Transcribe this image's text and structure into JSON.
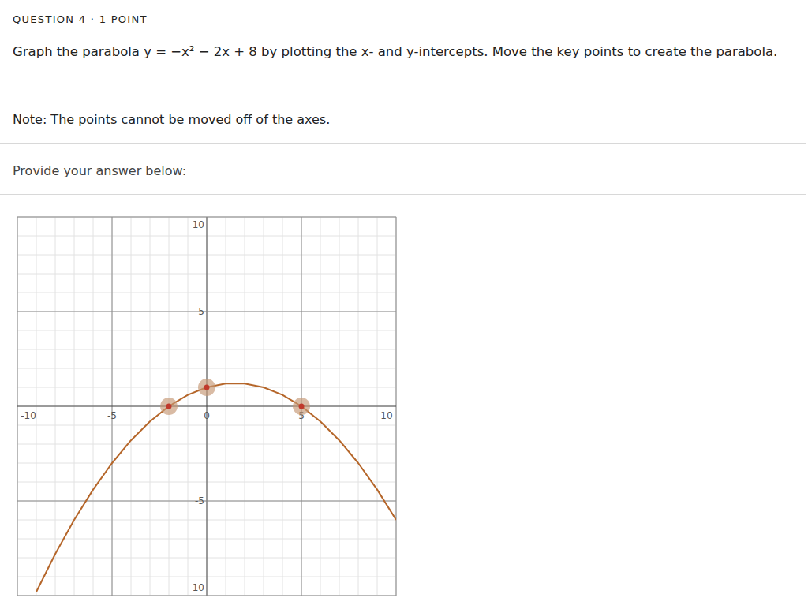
{
  "header": "QUESTION 4 · 1 POINT",
  "question": "Graph the parabola y = −x² − 2x + 8 by plotting the x- and y-intercepts. Move the key points to create the parabola.",
  "note": "Note: The points cannot be moved off of the axes.",
  "prompt": "Provide your answer below:",
  "chart_data": {
    "type": "line",
    "x": [
      -9,
      -8,
      -7,
      -6,
      -5,
      -4,
      -3,
      -2,
      -1,
      0,
      1,
      1.5,
      2,
      3,
      4,
      5,
      6,
      7,
      8,
      9,
      10
    ],
    "series": [
      {
        "color": "#b5662a",
        "values": [
          -9.8,
          -7.8,
          -6,
          -4.4,
          -3,
          -1.8,
          -0.8,
          0,
          0.6,
          1,
          1.2,
          1.2,
          1.2,
          1,
          0.6,
          0,
          -0.8,
          -1.8,
          -3,
          -4.4,
          -6
        ]
      }
    ],
    "key_points": {
      "x": [
        -2,
        0,
        5
      ],
      "y": [
        0,
        1,
        0
      ],
      "color": "#c0392b",
      "marker": "circle"
    },
    "xlim": [
      -10,
      10
    ],
    "ylim": [
      -10,
      10
    ],
    "xticks": [
      -10,
      -5,
      0,
      5,
      10
    ],
    "yticks": [
      -10,
      -5,
      0,
      5,
      10
    ],
    "grid": true
  }
}
